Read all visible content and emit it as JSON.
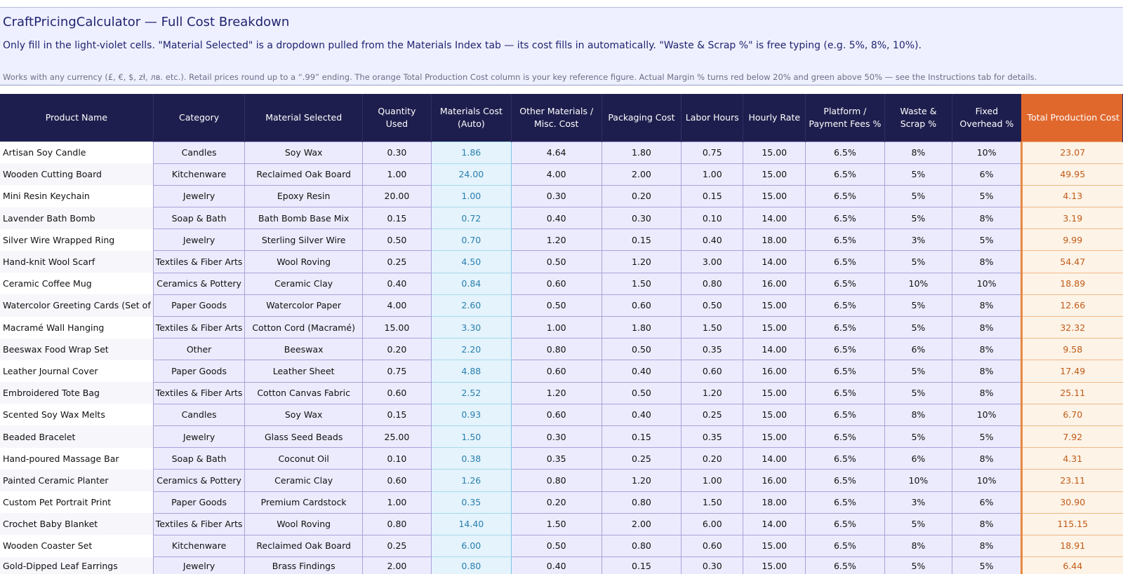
{
  "banner": {
    "title": "CraftPricingCalculator — Full Cost Breakdown",
    "subtitle": "Only fill in the light-violet cells. \"Material Selected\" is a dropdown pulled from the Materials Index tab — its cost fills in automatically. \"Waste & Scrap %\" is free typing (e.g. 5%, 8%, 10%).",
    "note": "Works with any currency (£, €, $, zł, лв. etc.). Retail prices round up to a “.99” ending. The orange Total Production Cost column is your key reference figure. Actual Margin % turns red below 20% and green above 50% — see the Instructions tab for details."
  },
  "colors": {
    "header_bg": "#1e1e4e",
    "total_header_bg": "#e0682d",
    "input_cell_bg": "#ecebfd",
    "auto_cell_bg": "#e4f3fc",
    "auto_text": "#2a7fae",
    "total_text": "#c05b18"
  },
  "table": {
    "headers": {
      "product_name": "Product Name",
      "category": "Category",
      "material_selected": "Material Selected",
      "quantity_used": "Quantity Used",
      "materials_cost": "Materials Cost (Auto)",
      "other_materials": "Other Materials / Misc. Cost",
      "packaging_cost": "Packaging Cost",
      "labor_hours": "Labor Hours",
      "hourly_rate": "Hourly Rate",
      "platform_fees": "Platform / Payment Fees %",
      "waste_scrap": "Waste & Scrap %",
      "fixed_overhead": "Fixed Overhead %",
      "total_production_cost": "Total Production Cost"
    },
    "rows": [
      {
        "name": "Artisan Soy Candle",
        "category": "Candles",
        "material": "Soy Wax",
        "qty": "0.30",
        "mat_cost": "1.86",
        "other": "4.64",
        "packaging": "1.80",
        "labor": "0.75",
        "rate": "15.00",
        "fees": "6.5%",
        "waste": "8%",
        "overhead": "10%",
        "total": "23.07"
      },
      {
        "name": "Wooden Cutting Board",
        "category": "Kitchenware",
        "material": "Reclaimed Oak Board",
        "qty": "1.00",
        "mat_cost": "24.00",
        "other": "4.00",
        "packaging": "2.00",
        "labor": "1.00",
        "rate": "15.00",
        "fees": "6.5%",
        "waste": "5%",
        "overhead": "6%",
        "total": "49.95"
      },
      {
        "name": "Mini Resin Keychain",
        "category": "Jewelry",
        "material": "Epoxy Resin",
        "qty": "20.00",
        "mat_cost": "1.00",
        "other": "0.30",
        "packaging": "0.20",
        "labor": "0.15",
        "rate": "15.00",
        "fees": "6.5%",
        "waste": "5%",
        "overhead": "5%",
        "total": "4.13"
      },
      {
        "name": "Lavender Bath Bomb",
        "category": "Soap & Bath",
        "material": "Bath Bomb Base Mix",
        "qty": "0.15",
        "mat_cost": "0.72",
        "other": "0.40",
        "packaging": "0.30",
        "labor": "0.10",
        "rate": "14.00",
        "fees": "6.5%",
        "waste": "5%",
        "overhead": "8%",
        "total": "3.19"
      },
      {
        "name": "Silver Wire Wrapped Ring",
        "category": "Jewelry",
        "material": "Sterling Silver Wire",
        "qty": "0.50",
        "mat_cost": "0.70",
        "other": "1.20",
        "packaging": "0.15",
        "labor": "0.40",
        "rate": "18.00",
        "fees": "6.5%",
        "waste": "3%",
        "overhead": "5%",
        "total": "9.99"
      },
      {
        "name": "Hand-knit Wool Scarf",
        "category": "Textiles & Fiber Arts",
        "material": "Wool Roving",
        "qty": "0.25",
        "mat_cost": "4.50",
        "other": "0.50",
        "packaging": "1.20",
        "labor": "3.00",
        "rate": "14.00",
        "fees": "6.5%",
        "waste": "5%",
        "overhead": "8%",
        "total": "54.47"
      },
      {
        "name": "Ceramic Coffee Mug",
        "category": "Ceramics & Pottery",
        "material": "Ceramic Clay",
        "qty": "0.40",
        "mat_cost": "0.84",
        "other": "0.60",
        "packaging": "1.50",
        "labor": "0.80",
        "rate": "16.00",
        "fees": "6.5%",
        "waste": "10%",
        "overhead": "10%",
        "total": "18.89"
      },
      {
        "name": "Watercolor Greeting Cards (Set of",
        "category": "Paper Goods",
        "material": "Watercolor Paper",
        "qty": "4.00",
        "mat_cost": "2.60",
        "other": "0.50",
        "packaging": "0.60",
        "labor": "0.50",
        "rate": "15.00",
        "fees": "6.5%",
        "waste": "5%",
        "overhead": "8%",
        "total": "12.66"
      },
      {
        "name": "Macramé Wall Hanging",
        "category": "Textiles & Fiber Arts",
        "material": "Cotton Cord (Macramé)",
        "qty": "15.00",
        "mat_cost": "3.30",
        "other": "1.00",
        "packaging": "1.80",
        "labor": "1.50",
        "rate": "15.00",
        "fees": "6.5%",
        "waste": "5%",
        "overhead": "8%",
        "total": "32.32"
      },
      {
        "name": "Beeswax Food Wrap Set",
        "category": "Other",
        "material": "Beeswax",
        "qty": "0.20",
        "mat_cost": "2.20",
        "other": "0.80",
        "packaging": "0.50",
        "labor": "0.35",
        "rate": "14.00",
        "fees": "6.5%",
        "waste": "6%",
        "overhead": "8%",
        "total": "9.58"
      },
      {
        "name": "Leather Journal Cover",
        "category": "Paper Goods",
        "material": "Leather Sheet",
        "qty": "0.75",
        "mat_cost": "4.88",
        "other": "0.60",
        "packaging": "0.40",
        "labor": "0.60",
        "rate": "16.00",
        "fees": "6.5%",
        "waste": "5%",
        "overhead": "8%",
        "total": "17.49"
      },
      {
        "name": "Embroidered Tote Bag",
        "category": "Textiles & Fiber Arts",
        "material": "Cotton Canvas Fabric",
        "qty": "0.60",
        "mat_cost": "2.52",
        "other": "1.20",
        "packaging": "0.50",
        "labor": "1.20",
        "rate": "15.00",
        "fees": "6.5%",
        "waste": "5%",
        "overhead": "8%",
        "total": "25.11"
      },
      {
        "name": "Scented Soy Wax Melts",
        "category": "Candles",
        "material": "Soy Wax",
        "qty": "0.15",
        "mat_cost": "0.93",
        "other": "0.60",
        "packaging": "0.40",
        "labor": "0.25",
        "rate": "15.00",
        "fees": "6.5%",
        "waste": "8%",
        "overhead": "10%",
        "total": "6.70"
      },
      {
        "name": "Beaded Bracelet",
        "category": "Jewelry",
        "material": "Glass Seed Beads",
        "qty": "25.00",
        "mat_cost": "1.50",
        "other": "0.30",
        "packaging": "0.15",
        "labor": "0.35",
        "rate": "15.00",
        "fees": "6.5%",
        "waste": "5%",
        "overhead": "5%",
        "total": "7.92"
      },
      {
        "name": "Hand-poured Massage Bar",
        "category": "Soap & Bath",
        "material": "Coconut Oil",
        "qty": "0.10",
        "mat_cost": "0.38",
        "other": "0.35",
        "packaging": "0.25",
        "labor": "0.20",
        "rate": "14.00",
        "fees": "6.5%",
        "waste": "6%",
        "overhead": "8%",
        "total": "4.31"
      },
      {
        "name": "Painted Ceramic Planter",
        "category": "Ceramics & Pottery",
        "material": "Ceramic Clay",
        "qty": "0.60",
        "mat_cost": "1.26",
        "other": "0.80",
        "packaging": "1.20",
        "labor": "1.00",
        "rate": "16.00",
        "fees": "6.5%",
        "waste": "10%",
        "overhead": "10%",
        "total": "23.11"
      },
      {
        "name": "Custom Pet Portrait Print",
        "category": "Paper Goods",
        "material": "Premium Cardstock",
        "qty": "1.00",
        "mat_cost": "0.35",
        "other": "0.20",
        "packaging": "0.80",
        "labor": "1.50",
        "rate": "18.00",
        "fees": "6.5%",
        "waste": "3%",
        "overhead": "6%",
        "total": "30.90"
      },
      {
        "name": "Crochet Baby Blanket",
        "category": "Textiles & Fiber Arts",
        "material": "Wool Roving",
        "qty": "0.80",
        "mat_cost": "14.40",
        "other": "1.50",
        "packaging": "2.00",
        "labor": "6.00",
        "rate": "14.00",
        "fees": "6.5%",
        "waste": "5%",
        "overhead": "8%",
        "total": "115.15"
      },
      {
        "name": "Wooden Coaster Set",
        "category": "Kitchenware",
        "material": "Reclaimed Oak Board",
        "qty": "0.25",
        "mat_cost": "6.00",
        "other": "0.50",
        "packaging": "0.80",
        "labor": "0.60",
        "rate": "15.00",
        "fees": "6.5%",
        "waste": "8%",
        "overhead": "8%",
        "total": "18.91"
      },
      {
        "name": "Gold-Dipped Leaf Earrings",
        "category": "Jewelry",
        "material": "Brass Findings",
        "qty": "2.00",
        "mat_cost": "0.80",
        "other": "0.40",
        "packaging": "0.15",
        "labor": "0.30",
        "rate": "15.00",
        "fees": "6.5%",
        "waste": "5%",
        "overhead": "5%",
        "total": "6.44"
      }
    ]
  }
}
